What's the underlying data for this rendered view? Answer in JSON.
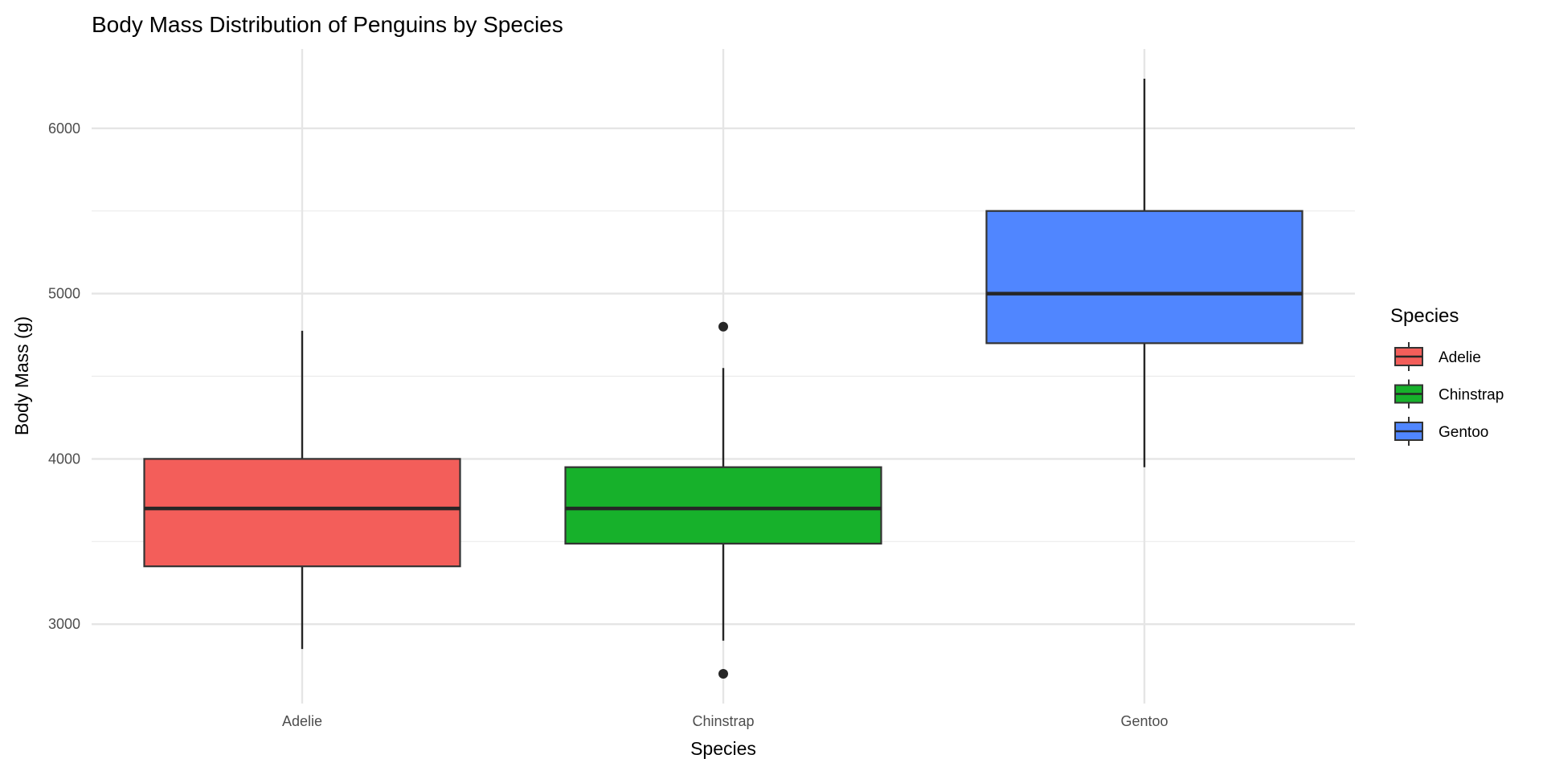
{
  "chart_data": {
    "type": "boxplot",
    "title": "Body Mass Distribution of Penguins by Species",
    "xlabel": "Species",
    "ylabel": "Body Mass (g)",
    "categories": [
      "Adelie",
      "Chinstrap",
      "Gentoo"
    ],
    "ylim": [
      2520,
      6480
    ],
    "yticks": [
      3000,
      4000,
      5000,
      6000
    ],
    "grid": true,
    "legend": {
      "title": "Species",
      "position": "right",
      "entries": [
        "Adelie",
        "Chinstrap",
        "Gentoo"
      ]
    },
    "colors": {
      "Adelie": "#F35E5A",
      "Chinstrap": "#17B12B",
      "Gentoo": "#5086FF"
    },
    "boxes": [
      {
        "name": "Adelie",
        "whisker_low": 2850,
        "q1": 3350,
        "median": 3700,
        "q3": 4000,
        "whisker_high": 4775,
        "outliers": []
      },
      {
        "name": "Chinstrap",
        "whisker_low": 2900,
        "q1": 3487.5,
        "median": 3700,
        "q3": 3950,
        "whisker_high": 4550,
        "outliers": [
          2700,
          4800
        ]
      },
      {
        "name": "Gentoo",
        "whisker_low": 3950,
        "q1": 4700,
        "median": 5000,
        "q3": 5500,
        "whisker_high": 6300,
        "outliers": []
      }
    ]
  }
}
